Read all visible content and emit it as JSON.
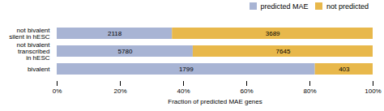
{
  "chart_data": {
    "type": "bar",
    "orientation": "horizontal",
    "stacked": true,
    "categories": [
      "not bivalent\nsilent in hESC",
      "not bivalent\ntranscribed\nin hESC",
      "bivalent"
    ],
    "series": [
      {
        "name": "predicted MAE",
        "color": "#a8b4d4",
        "values": [
          36.4732,
          43.054,
          81.6985
        ],
        "counts": [
          2118,
          5780,
          1799
        ]
      },
      {
        "name": "not predicted",
        "color": "#e8b84b",
        "values": [
          63.5268,
          56.946,
          18.3015
        ],
        "counts": [
          3689,
          7645,
          403
        ]
      }
    ],
    "xlabel": "Fraction of predicted MAE genes",
    "xlim": [
      0,
      100
    ],
    "xticks": [
      {
        "value": 0,
        "label": "0%"
      },
      {
        "value": 20,
        "label": "20%"
      },
      {
        "value": 40,
        "label": "40%"
      },
      {
        "value": 60,
        "label": "60%"
      },
      {
        "value": 80,
        "label": "80%"
      },
      {
        "value": 100,
        "label": "100%"
      }
    ],
    "legend": "upper right",
    "grid": false
  }
}
